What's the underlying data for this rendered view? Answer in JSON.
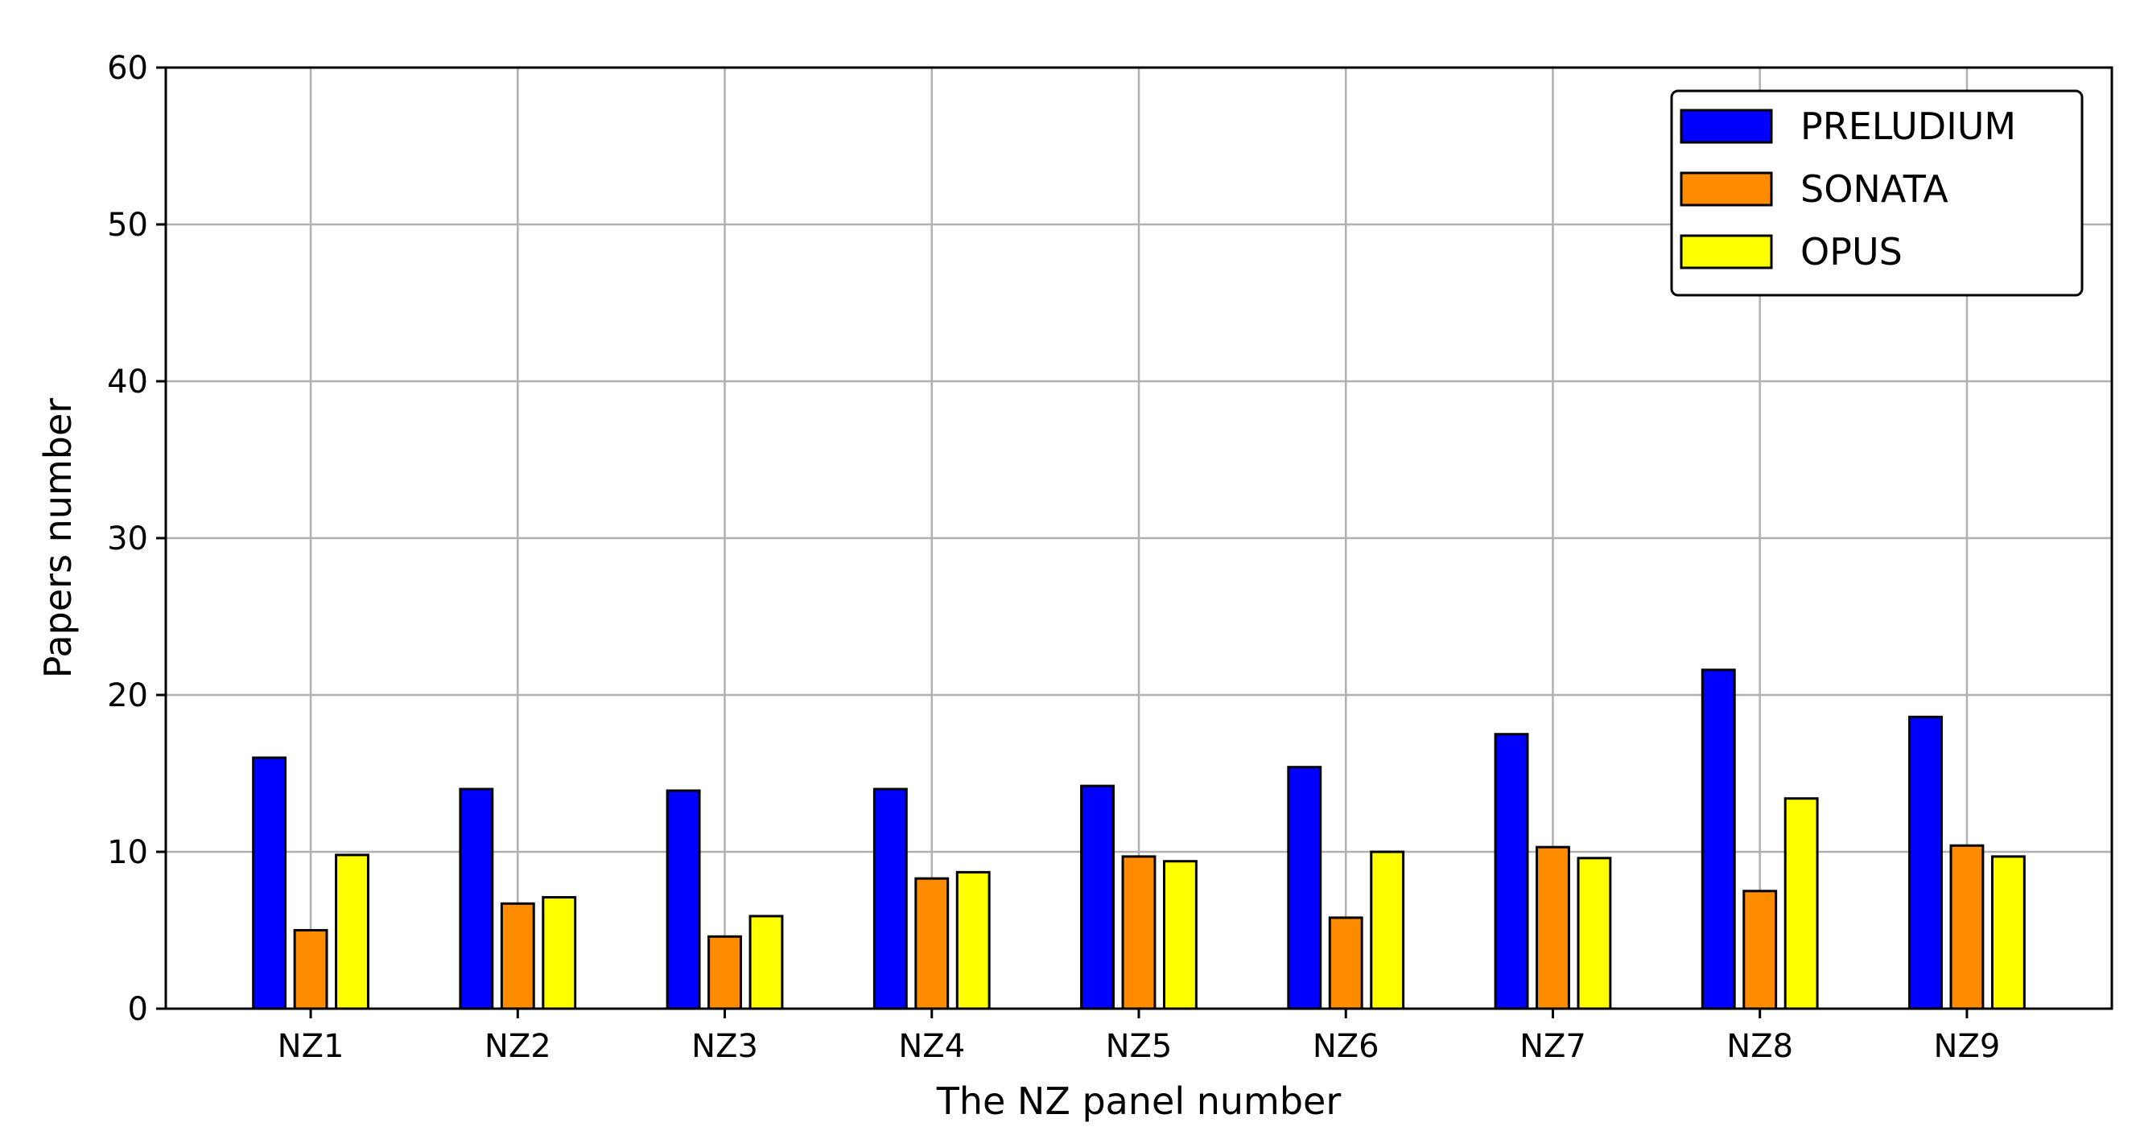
{
  "chart_data": {
    "type": "bar",
    "title": "",
    "xlabel": "The NZ panel number",
    "ylabel": "Papers number",
    "ylim": [
      0,
      60
    ],
    "yticks": [
      0,
      10,
      20,
      30,
      40,
      50,
      60
    ],
    "grid": true,
    "legend_position": "top-right",
    "categories": [
      "NZ1",
      "NZ2",
      "NZ3",
      "NZ4",
      "NZ5",
      "NZ6",
      "NZ7",
      "NZ8",
      "NZ9"
    ],
    "series": [
      {
        "name": "PRELUDIUM",
        "color": "#0000ff",
        "values": [
          16.0,
          14.0,
          13.9,
          14.0,
          14.2,
          15.4,
          17.5,
          21.6,
          18.6
        ]
      },
      {
        "name": "SONATA",
        "color": "#ff8c00",
        "values": [
          5.0,
          6.7,
          4.6,
          8.3,
          9.7,
          5.8,
          10.3,
          7.5,
          10.4
        ]
      },
      {
        "name": "OPUS",
        "color": "#ffff00",
        "values": [
          9.8,
          7.1,
          5.9,
          8.7,
          9.4,
          10.0,
          9.6,
          13.4,
          9.7
        ]
      }
    ]
  }
}
